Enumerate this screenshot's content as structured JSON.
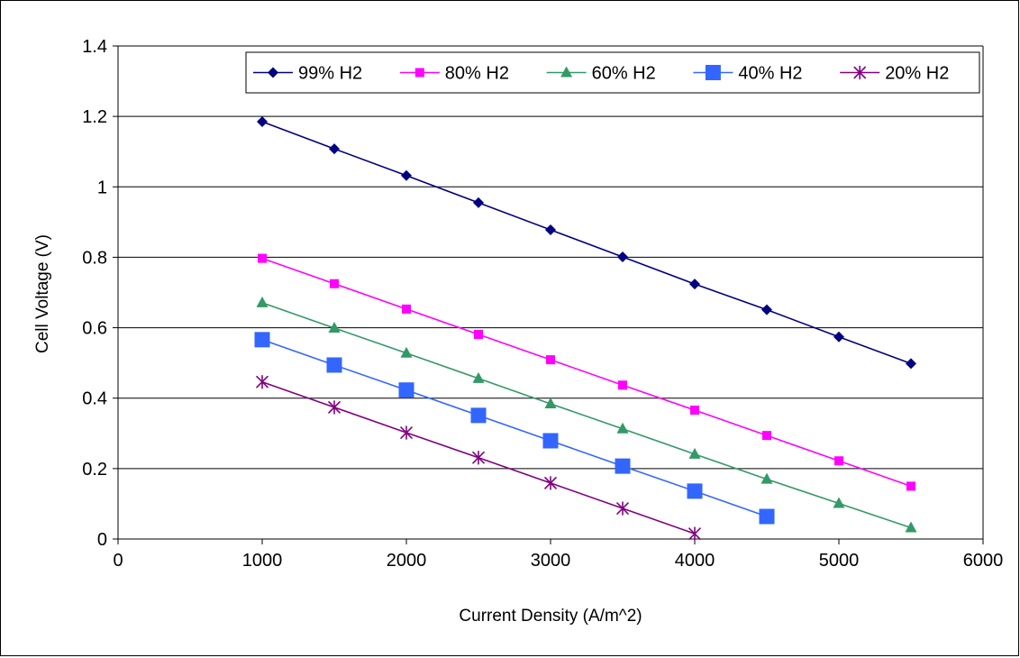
{
  "chart_data": {
    "type": "line",
    "title": "",
    "xlabel": "Current Density (A/m^2)",
    "ylabel": "Cell Voltage (V)",
    "xlim": [
      0,
      6000
    ],
    "ylim": [
      0,
      1.4
    ],
    "xticks": [
      0,
      1000,
      2000,
      3000,
      4000,
      5000,
      6000
    ],
    "yticks": [
      0,
      0.2,
      0.4,
      0.6,
      0.8,
      1,
      1.2,
      1.4
    ],
    "xtick_labels": [
      "0",
      "1000",
      "2000",
      "3000",
      "4000",
      "5000",
      "6000"
    ],
    "ytick_labels": [
      "0",
      "0.2",
      "0.4",
      "0.6",
      "0.8",
      "1",
      "1.2",
      "1.4"
    ],
    "grid": "horizontal",
    "legend_position": "top-right",
    "series": [
      {
        "name": "99% H2",
        "color": "#000080",
        "marker": "diamond",
        "x": [
          1000,
          1500,
          2000,
          2500,
          3000,
          3500,
          4000,
          4500,
          5000,
          5500
        ],
        "y": [
          1.185,
          1.108,
          1.032,
          0.955,
          0.878,
          0.801,
          0.724,
          0.651,
          0.574,
          0.498
        ]
      },
      {
        "name": "80% H2",
        "color": "#FF00FF",
        "marker": "square",
        "x": [
          1000,
          1500,
          2000,
          2500,
          3000,
          3500,
          4000,
          4500,
          5000,
          5500
        ],
        "y": [
          0.797,
          0.725,
          0.653,
          0.581,
          0.509,
          0.437,
          0.366,
          0.294,
          0.222,
          0.15
        ]
      },
      {
        "name": "60% H2",
        "color": "#339966",
        "marker": "triangle",
        "x": [
          1000,
          1500,
          2000,
          2500,
          3000,
          3500,
          4000,
          4500,
          5000,
          5500
        ],
        "y": [
          0.671,
          0.599,
          0.528,
          0.456,
          0.384,
          0.313,
          0.241,
          0.17,
          0.101,
          0.032
        ]
      },
      {
        "name": "40% H2",
        "color": "#3366FF",
        "marker": "big-square",
        "x": [
          1000,
          1500,
          2000,
          2500,
          3000,
          3500,
          4000,
          4500
        ],
        "y": [
          0.566,
          0.494,
          0.423,
          0.351,
          0.279,
          0.207,
          0.136,
          0.064
        ]
      },
      {
        "name": "20% H2",
        "color": "#800080",
        "marker": "asterisk",
        "x": [
          1000,
          1500,
          2000,
          2500,
          3000,
          3500,
          4000
        ],
        "y": [
          0.446,
          0.374,
          0.302,
          0.231,
          0.159,
          0.087,
          0.015
        ]
      }
    ]
  }
}
